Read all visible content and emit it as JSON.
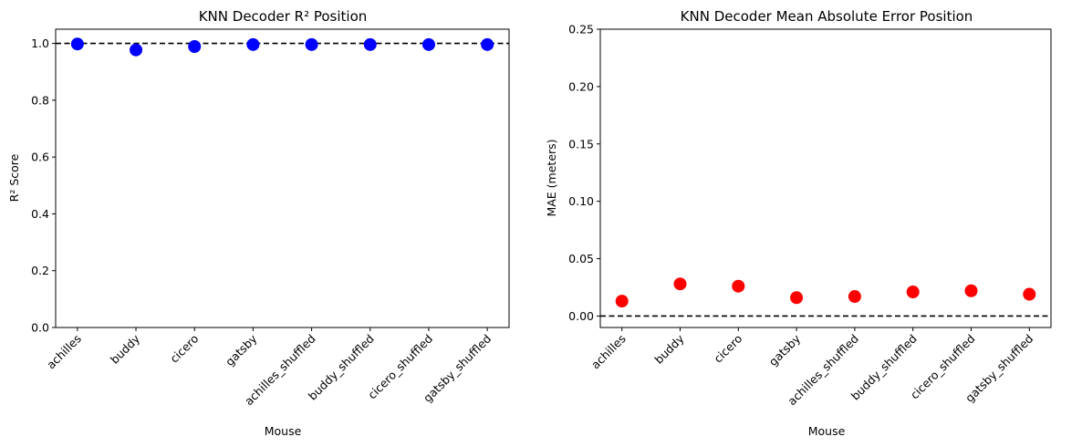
{
  "chart_data": [
    {
      "type": "scatter",
      "title": "KNN Decoder R² Position",
      "xlabel": "Mouse",
      "ylabel": "R² Score",
      "categories": [
        "achilles",
        "buddy",
        "cicero",
        "gatsby",
        "achilles_shuffled",
        "buddy_shuffled",
        "cicero_shuffled",
        "gatsby_shuffled"
      ],
      "values": [
        0.998,
        0.977,
        0.989,
        0.996,
        0.996,
        0.996,
        0.996,
        0.996
      ],
      "ylim": [
        0.0,
        1.05
      ],
      "yticks": [
        "0.0",
        "0.2",
        "0.4",
        "0.6",
        "0.8",
        "1.0"
      ],
      "reference_line": 1.0,
      "marker_color": "#0000ff",
      "reference_color": "#000000",
      "grid": false
    },
    {
      "type": "scatter",
      "title": "KNN Decoder Mean Absolute Error Position",
      "xlabel": "Mouse",
      "ylabel": "MAE (meters)",
      "categories": [
        "achilles",
        "buddy",
        "cicero",
        "gatsby",
        "achilles_shuffled",
        "buddy_shuffled",
        "cicero_shuffled",
        "gatsby_shuffled"
      ],
      "values": [
        0.013,
        0.028,
        0.026,
        0.016,
        0.017,
        0.021,
        0.022,
        0.019
      ],
      "ylim": [
        -0.01,
        0.25
      ],
      "yticks": [
        "0.00",
        "0.05",
        "0.10",
        "0.15",
        "0.20",
        "0.25"
      ],
      "reference_line": 0.0,
      "marker_color": "#ff0000",
      "reference_color": "#000000",
      "grid": false
    }
  ]
}
